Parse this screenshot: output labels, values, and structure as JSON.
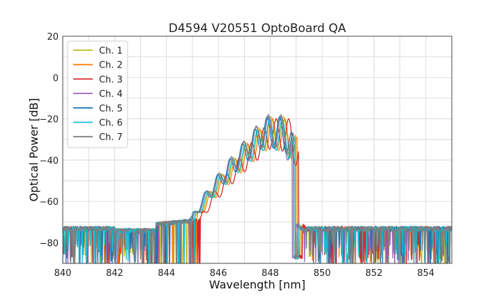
{
  "chart_data": {
    "type": "line",
    "title": "D4594 V20551 OptoBoard QA",
    "xlabel": "Wavelength [nm]",
    "ylabel": "Optical Power [dB]",
    "xlim": [
      840,
      855
    ],
    "ylim": [
      -90,
      20
    ],
    "x_ticks": [
      840,
      842,
      844,
      846,
      848,
      850,
      852,
      854
    ],
    "x_tick_labels": [
      "840",
      "842",
      "844",
      "846",
      "848",
      "850",
      "852",
      "854"
    ],
    "y_ticks": [
      20,
      0,
      -20,
      -40,
      -60,
      -80
    ],
    "y_tick_labels": [
      "20",
      "0",
      "−20",
      "−40",
      "−60",
      "−80"
    ],
    "grid": true,
    "legend_position": "top-left",
    "noise_floor_db": -76,
    "series": [
      {
        "name": "Ch. 1",
        "color": "#bcbd22",
        "left_edge_nm": 845.15,
        "right_edge_nm": 849.0,
        "peak_db": -19,
        "fringe_period_nm": 0.48
      },
      {
        "name": "Ch. 2",
        "color": "#ff7f0e",
        "left_edge_nm": 845.2,
        "right_edge_nm": 849.05,
        "peak_db": -20,
        "fringe_period_nm": 0.48
      },
      {
        "name": "Ch. 3",
        "color": "#d62728",
        "left_edge_nm": 845.35,
        "right_edge_nm": 849.1,
        "peak_db": -20,
        "fringe_period_nm": 0.48
      },
      {
        "name": "Ch. 4",
        "color": "#9467bd",
        "left_edge_nm": 845.05,
        "right_edge_nm": 848.85,
        "peak_db": -19,
        "fringe_period_nm": 0.48
      },
      {
        "name": "Ch. 5",
        "color": "#1f77b4",
        "left_edge_nm": 845.0,
        "right_edge_nm": 848.9,
        "peak_db": -19,
        "fringe_period_nm": 0.48
      },
      {
        "name": "Ch. 6",
        "color": "#17becf",
        "left_edge_nm": 845.1,
        "right_edge_nm": 848.95,
        "peak_db": -20,
        "fringe_period_nm": 0.48
      },
      {
        "name": "Ch. 7",
        "color": "#7f7f7f",
        "left_edge_nm": 845.05,
        "right_edge_nm": 848.9,
        "peak_db": -18,
        "fringe_period_nm": 0.48
      }
    ]
  }
}
